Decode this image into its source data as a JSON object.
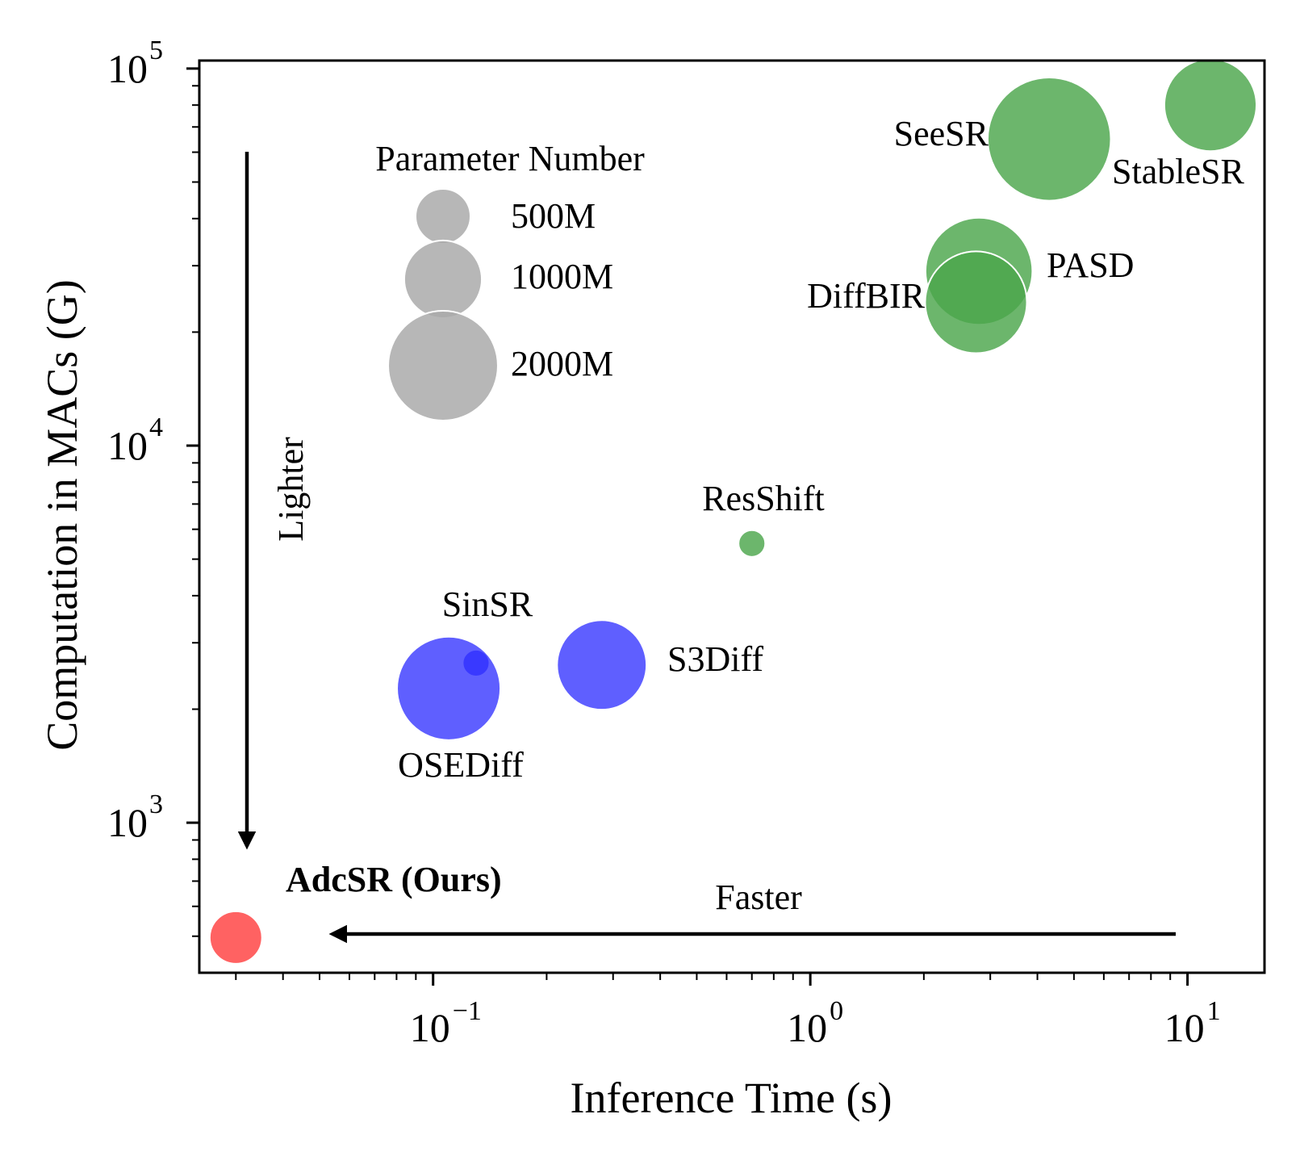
{
  "chart_data": {
    "type": "scatter",
    "subtype": "bubble",
    "xlabel": "Inference Time (s)",
    "ylabel": "Computation in MACs (G)",
    "xscale": "log",
    "yscale": "log",
    "xlim": [
      0.024,
      16
    ],
    "ylim": [
      400,
      105000
    ],
    "x_ticks": [
      {
        "value": 0.1,
        "base": "10",
        "exp": "−1"
      },
      {
        "value": 1,
        "base": "10",
        "exp": "0"
      },
      {
        "value": 10,
        "base": "10",
        "exp": "1"
      }
    ],
    "y_ticks": [
      {
        "value": 1000,
        "base": "10",
        "exp": "3"
      },
      {
        "value": 10000,
        "base": "10",
        "exp": "4"
      },
      {
        "value": 100000,
        "base": "10",
        "exp": "5"
      }
    ],
    "points": [
      {
        "name": "StableSR",
        "x": 11.5,
        "y": 80000,
        "params": 1410,
        "color": "#4ca64c"
      },
      {
        "name": "SeeSR",
        "x": 4.3,
        "y": 65000,
        "params": 2520,
        "color": "#4ca64c"
      },
      {
        "name": "PASD",
        "x": 2.8,
        "y": 29000,
        "params": 1900,
        "color": "#4ca64c"
      },
      {
        "name": "DiffBIR",
        "x": 2.75,
        "y": 24000,
        "params": 1720,
        "color": "#4ca64c"
      },
      {
        "name": "ResShift",
        "x": 0.7,
        "y": 5500,
        "params": 119,
        "color": "#4ca64c"
      },
      {
        "name": "SinSR",
        "x": 0.13,
        "y": 2650,
        "params": 119,
        "color": "#0000ff"
      },
      {
        "name": "OSEDiff",
        "x": 0.11,
        "y": 2270,
        "params": 1775,
        "color": "#3c3cff"
      },
      {
        "name": "S3Diff",
        "x": 0.28,
        "y": 2620,
        "params": 1330,
        "color": "#3c3cff"
      },
      {
        "name": "AdcSR (Ours)",
        "x": 0.03,
        "y": 496,
        "params": 456,
        "color": "#ff4040"
      }
    ],
    "legend": {
      "title": "Parameter Number",
      "entries": [
        {
          "label": "500M",
          "params": 500
        },
        {
          "label": "1000M",
          "params": 1000
        },
        {
          "label": "2000M",
          "params": 2000
        }
      ],
      "color": "#aaaaaa",
      "placement": "upper-left"
    },
    "annotations": [
      {
        "text": "Lighter",
        "direction": "down"
      },
      {
        "text": "Faster",
        "direction": "left"
      }
    ]
  }
}
